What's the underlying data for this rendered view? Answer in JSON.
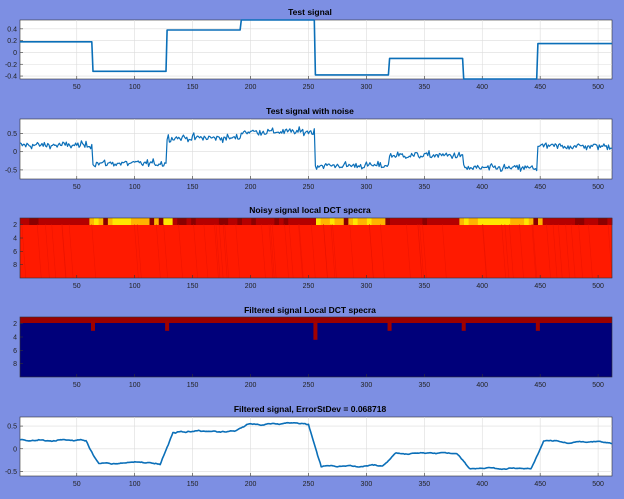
{
  "colors": {
    "background": "#7d8fe3",
    "line": "#0b6fb8",
    "heat_low": "#00007a",
    "heat_high": "#ff1a00"
  },
  "xticks": [
    "50",
    "100",
    "150",
    "200",
    "250",
    "300",
    "350",
    "400",
    "450",
    "500"
  ],
  "chart_data": [
    {
      "type": "line",
      "title": "Test signal",
      "xlim": [
        1,
        512
      ],
      "ylim": [
        -0.45,
        0.55
      ],
      "yticks": [
        "0.4",
        "0.2",
        "0",
        "-0.2",
        "-0.4"
      ],
      "grid": true,
      "segments": [
        {
          "x": [
            1,
            64
          ],
          "y": 0.18
        },
        {
          "x": [
            64,
            128
          ],
          "y": -0.32
        },
        {
          "x": [
            128,
            192
          ],
          "y": 0.38
        },
        {
          "x": [
            192,
            256
          ],
          "y": 0.55
        },
        {
          "x": [
            256,
            320
          ],
          "y": -0.38
        },
        {
          "x": [
            320,
            384
          ],
          "y": -0.1
        },
        {
          "x": [
            384,
            448
          ],
          "y": -0.45
        },
        {
          "x": [
            448,
            512
          ],
          "y": 0.15
        }
      ]
    },
    {
      "type": "line",
      "title": "Test signal with noise",
      "xlim": [
        1,
        512
      ],
      "ylim": [
        -0.75,
        0.9
      ],
      "yticks": [
        "0.5",
        "0",
        "-0.5"
      ],
      "grid": true,
      "noise_std": 0.07
    },
    {
      "type": "heatmap",
      "title": "Noisy signal local  DCT specra",
      "xlim": [
        1,
        512
      ],
      "ylim": [
        1,
        10
      ],
      "yticks": [
        "2",
        "4",
        "6",
        "8"
      ],
      "rows": 10,
      "dominant": "red",
      "bright_row": 1,
      "bright_regions": [
        [
          60,
          130
        ],
        [
          255,
          320
        ],
        [
          380,
          450
        ]
      ]
    },
    {
      "type": "heatmap",
      "title": "Filtered signal Local DCT specra",
      "xlim": [
        1,
        512
      ],
      "ylim": [
        1,
        10
      ],
      "yticks": [
        "2",
        "4",
        "6",
        "8"
      ],
      "rows": 10,
      "dominant": "blue",
      "bright_row": 1,
      "spikes": [
        64,
        128,
        256,
        320,
        384,
        448
      ]
    },
    {
      "type": "line",
      "title": "Filtered signal, ErrorStDev = 0.068718",
      "xlim": [
        1,
        512
      ],
      "ylim": [
        -0.6,
        0.7
      ],
      "yticks": [
        "0.5",
        "0",
        "-0.5"
      ],
      "grid": true
    }
  ]
}
